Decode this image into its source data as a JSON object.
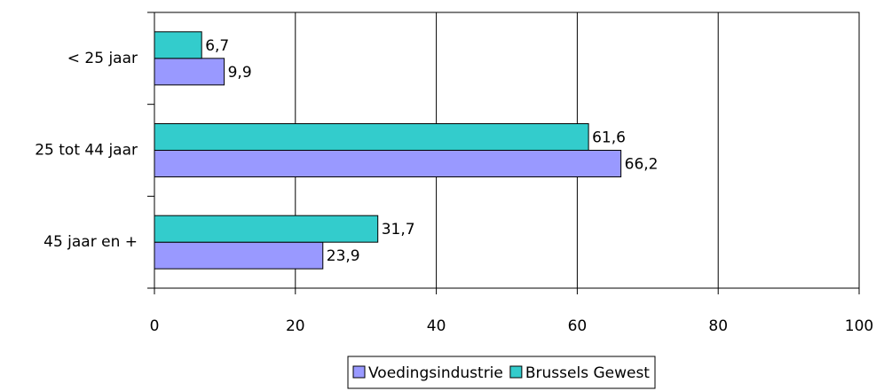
{
  "chart_data": {
    "type": "hbar",
    "categories": [
      "< 25 jaar",
      "25 tot 44 jaar",
      "45 jaar en +"
    ],
    "series": [
      {
        "name": "Voedingsindustrie",
        "color": "#9999ff",
        "values": [
          9.9,
          66.2,
          23.9
        ],
        "value_labels": [
          "9,9",
          "66,2",
          "23,9"
        ]
      },
      {
        "name": "Brussels Gewest",
        "color": "#33cccc",
        "values": [
          6.7,
          61.6,
          31.7
        ],
        "value_labels": [
          "6,7",
          "61,6",
          "31,7"
        ]
      }
    ],
    "xlim": [
      0,
      100
    ],
    "xticks": [
      0,
      20,
      40,
      60,
      80,
      100
    ],
    "grid": true,
    "legend": "bottom"
  }
}
